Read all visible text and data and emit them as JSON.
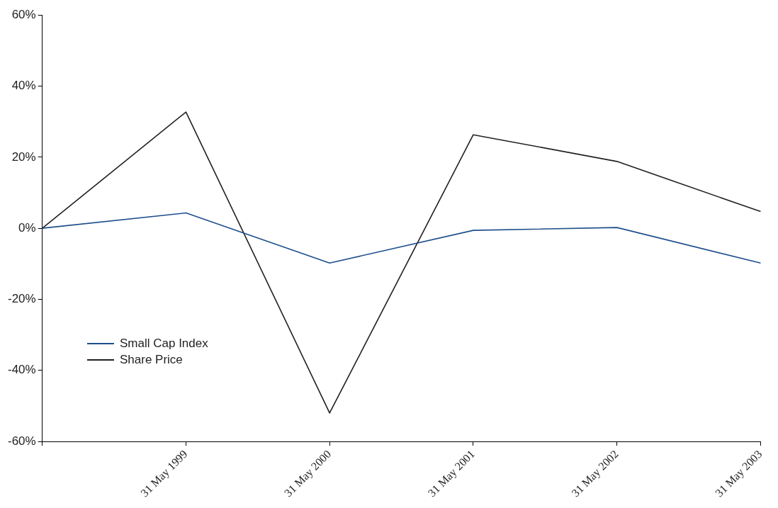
{
  "chart_data": {
    "type": "line",
    "categories": [
      null,
      "31 May 1999",
      "31 May 2000",
      "31 May 2001",
      "31 May 2002",
      "31 May 2003"
    ],
    "series": [
      {
        "name": "Small Cap Index",
        "color": "#1f4e8c",
        "values": [
          0,
          4.3,
          -9.8,
          -0.6,
          0.2,
          -9.8
        ]
      },
      {
        "name": "Share Price",
        "color": "#231f20",
        "values": [
          0,
          32.7,
          -52,
          26.3,
          18.8,
          4.7
        ]
      }
    ],
    "ylim": [
      -60,
      60
    ],
    "yticks": [
      {
        "value": -60,
        "label": "-60%"
      },
      {
        "value": -40,
        "label": "-40%"
      },
      {
        "value": -20,
        "label": "-20%"
      },
      {
        "value": 0,
        "label": "0%"
      },
      {
        "value": 20,
        "label": "20%"
      },
      {
        "value": 40,
        "label": "40%"
      },
      {
        "value": 60,
        "label": "60%"
      }
    ],
    "grid": false,
    "legend": "bottom left",
    "marker": "none",
    "line_style": "solid"
  }
}
